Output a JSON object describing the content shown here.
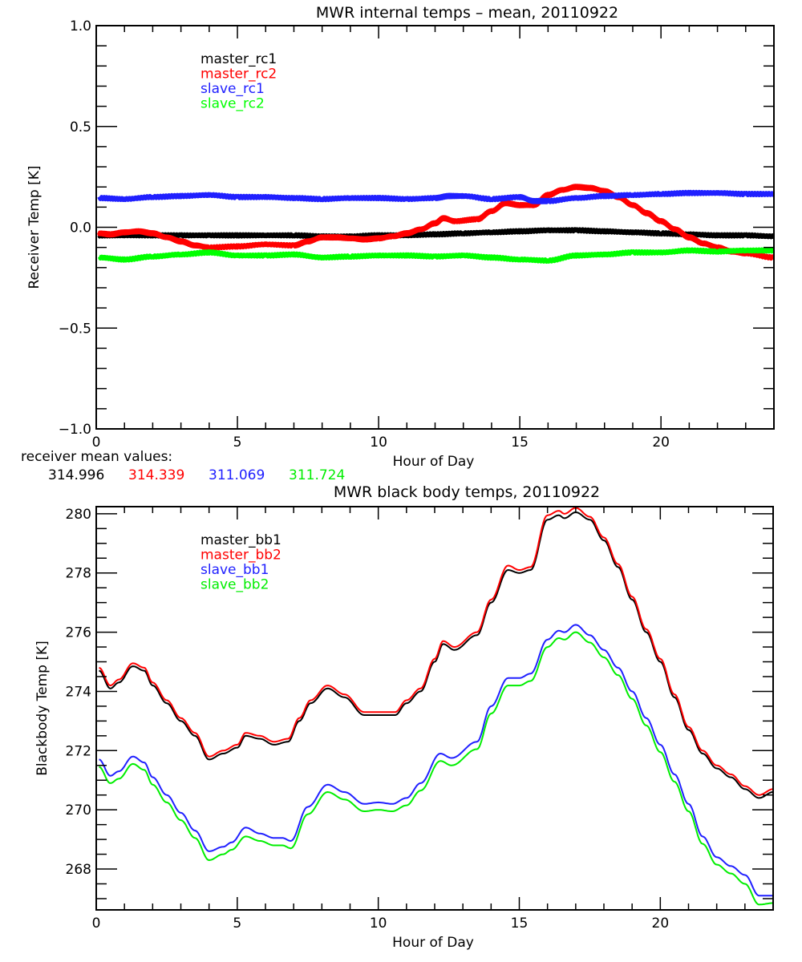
{
  "chart_data": [
    {
      "type": "line",
      "title": "MWR internal temps – mean, 20110922",
      "xlabel": "Hour of Day",
      "ylabel": "Receiver Temp [K]",
      "xlim": [
        0,
        24
      ],
      "ylim": [
        -1.0,
        1.0
      ],
      "xticks": [
        "0",
        "5",
        "10",
        "15",
        "20"
      ],
      "xtick_values": [
        0,
        5,
        10,
        15,
        20
      ],
      "yticks": [
        "-1.0",
        "-0.5",
        "0.0",
        "0.5",
        "1.0"
      ],
      "ytick_values": [
        -1.0,
        -0.5,
        0.0,
        0.5,
        1.0
      ],
      "grid": false,
      "legend_position": "top-left",
      "series": [
        {
          "name": "master_rc1",
          "color": "#000000",
          "x": [
            0.1,
            1,
            2,
            3,
            4,
            5,
            6,
            7,
            8,
            9,
            10,
            11,
            12,
            13,
            14,
            15,
            16,
            17,
            18,
            19,
            20,
            21,
            22,
            23,
            24
          ],
          "y": [
            -0.04,
            -0.04,
            -0.04,
            -0.04,
            -0.04,
            -0.04,
            -0.04,
            -0.04,
            -0.045,
            -0.045,
            -0.04,
            -0.04,
            -0.035,
            -0.03,
            -0.025,
            -0.02,
            -0.015,
            -0.015,
            -0.02,
            -0.025,
            -0.03,
            -0.035,
            -0.04,
            -0.04,
            -0.045
          ]
        },
        {
          "name": "master_rc2",
          "color": "#ff0000",
          "x": [
            0.1,
            0.5,
            1,
            1.5,
            2,
            2.5,
            3,
            3.5,
            4,
            5,
            6,
            7,
            7.5,
            8,
            8.5,
            9,
            9.5,
            10,
            10.5,
            11,
            11.5,
            12,
            12.3,
            12.7,
            13.5,
            14,
            14.5,
            15,
            15.5,
            16,
            16.5,
            17,
            17.5,
            18,
            18.5,
            19,
            19.5,
            20,
            20.5,
            21,
            21.5,
            22,
            22.5,
            23,
            24
          ],
          "y": [
            -0.03,
            -0.035,
            -0.025,
            -0.02,
            -0.03,
            -0.05,
            -0.07,
            -0.09,
            -0.1,
            -0.095,
            -0.085,
            -0.09,
            -0.07,
            -0.05,
            -0.05,
            -0.055,
            -0.06,
            -0.055,
            -0.045,
            -0.03,
            -0.01,
            0.02,
            0.045,
            0.03,
            0.04,
            0.08,
            0.12,
            0.11,
            0.11,
            0.16,
            0.185,
            0.2,
            0.195,
            0.18,
            0.15,
            0.11,
            0.07,
            0.03,
            -0.01,
            -0.05,
            -0.08,
            -0.1,
            -0.12,
            -0.13,
            -0.15
          ]
        },
        {
          "name": "slave_rc1",
          "color": "#2020ff",
          "x": [
            0.1,
            1,
            2,
            3,
            4,
            5,
            6,
            7,
            8,
            9,
            10,
            11,
            12,
            12.5,
            13,
            14,
            15,
            15.5,
            16,
            17,
            18,
            19,
            20,
            21,
            22,
            23,
            24
          ],
          "y": [
            0.145,
            0.14,
            0.15,
            0.155,
            0.16,
            0.15,
            0.15,
            0.145,
            0.14,
            0.145,
            0.145,
            0.14,
            0.145,
            0.155,
            0.155,
            0.14,
            0.15,
            0.13,
            0.13,
            0.145,
            0.155,
            0.16,
            0.165,
            0.17,
            0.17,
            0.165,
            0.165
          ]
        },
        {
          "name": "slave_rc2",
          "color": "#00ff00",
          "x": [
            0.1,
            1,
            2,
            3,
            4,
            5,
            6,
            7,
            8,
            9,
            10,
            11,
            12,
            13,
            14,
            15,
            16,
            17,
            18,
            19,
            20,
            21,
            22,
            23,
            24
          ],
          "y": [
            -0.15,
            -0.16,
            -0.145,
            -0.135,
            -0.125,
            -0.14,
            -0.14,
            -0.135,
            -0.15,
            -0.145,
            -0.14,
            -0.14,
            -0.145,
            -0.14,
            -0.15,
            -0.16,
            -0.165,
            -0.14,
            -0.135,
            -0.125,
            -0.125,
            -0.115,
            -0.12,
            -0.115,
            -0.115
          ]
        }
      ]
    },
    {
      "type": "line",
      "title": "MWR black body temps, 20110922",
      "xlabel": "Hour of Day",
      "ylabel": "Blackbody Temp [K]",
      "xlim": [
        0,
        24
      ],
      "ylim": [
        266.62,
        280.24
      ],
      "xticks": [
        "0",
        "5",
        "10",
        "15",
        "20"
      ],
      "xtick_values": [
        0,
        5,
        10,
        15,
        20
      ],
      "yticks": [
        "268",
        "270",
        "272",
        "274",
        "276",
        "278",
        "280"
      ],
      "ytick_values": [
        268,
        270,
        272,
        274,
        276,
        278,
        280
      ],
      "grid": false,
      "legend_position": "top-left",
      "series": [
        {
          "name": "master_bb1",
          "color": "#000000",
          "x": [
            0.1,
            0.5,
            0.8,
            1.3,
            1.7,
            2,
            2.5,
            3,
            3.5,
            4,
            4.5,
            5,
            5.3,
            5.8,
            6.3,
            6.8,
            7.2,
            7.6,
            8.2,
            8.8,
            9.5,
            10,
            10.6,
            11,
            11.5,
            12,
            12.3,
            12.7,
            13.5,
            14,
            14.6,
            15,
            15.4,
            16,
            16.4,
            16.6,
            17,
            17.5,
            18,
            18.5,
            19,
            19.5,
            20,
            20.5,
            21,
            21.5,
            22,
            22.5,
            23,
            23.5,
            24
          ],
          "y": [
            274.7,
            274.1,
            274.3,
            274.85,
            274.7,
            274.2,
            273.6,
            273.0,
            272.5,
            271.7,
            271.9,
            272.1,
            272.5,
            272.4,
            272.2,
            272.3,
            273.0,
            273.6,
            274.1,
            273.8,
            273.2,
            273.2,
            273.2,
            273.6,
            274.0,
            275.0,
            275.6,
            275.4,
            275.9,
            277.0,
            278.1,
            278.0,
            278.1,
            279.8,
            279.95,
            279.85,
            280.05,
            279.8,
            279.1,
            278.2,
            277.1,
            276.0,
            275.0,
            273.8,
            272.7,
            271.9,
            271.4,
            271.1,
            270.7,
            270.4,
            270.6
          ]
        },
        {
          "name": "master_bb2",
          "color": "#ff0000",
          "x": [
            0.1,
            0.5,
            0.8,
            1.3,
            1.7,
            2,
            2.5,
            3,
            3.5,
            4,
            4.5,
            5,
            5.3,
            5.8,
            6.3,
            6.8,
            7.2,
            7.6,
            8.2,
            8.8,
            9.5,
            10,
            10.6,
            11,
            11.5,
            12,
            12.3,
            12.7,
            13.5,
            14,
            14.6,
            15,
            15.4,
            16,
            16.4,
            16.6,
            17,
            17.5,
            18,
            18.5,
            19,
            19.5,
            20,
            20.5,
            21,
            21.5,
            22,
            22.5,
            23,
            23.5,
            24
          ],
          "y": [
            274.8,
            274.2,
            274.4,
            274.95,
            274.8,
            274.3,
            273.7,
            273.1,
            272.6,
            271.8,
            272.0,
            272.2,
            272.6,
            272.5,
            272.3,
            272.4,
            273.1,
            273.7,
            274.2,
            273.9,
            273.3,
            273.3,
            273.3,
            273.7,
            274.1,
            275.1,
            275.7,
            275.5,
            276.0,
            277.1,
            278.25,
            278.1,
            278.2,
            279.95,
            280.1,
            280.0,
            280.2,
            279.9,
            279.2,
            278.3,
            277.2,
            276.1,
            275.1,
            273.9,
            272.8,
            272.0,
            271.5,
            271.2,
            270.8,
            270.5,
            270.7
          ]
        },
        {
          "name": "slave_bb1",
          "color": "#2020ff",
          "x": [
            0.1,
            0.5,
            0.8,
            1.3,
            1.7,
            2,
            2.5,
            3,
            3.5,
            4,
            4.5,
            4.8,
            5.3,
            5.8,
            6.3,
            6.6,
            6.9,
            7.5,
            8.2,
            8.8,
            9.5,
            10,
            10.5,
            11,
            11.5,
            12.2,
            12.6,
            13.5,
            14,
            14.6,
            15,
            15.4,
            16,
            16.4,
            16.6,
            17,
            17.5,
            18,
            18.5,
            19,
            19.5,
            20,
            20.5,
            21,
            21.5,
            22,
            22.5,
            23,
            23.5,
            24
          ],
          "y": [
            271.7,
            271.15,
            271.3,
            271.8,
            271.6,
            271.1,
            270.5,
            269.9,
            269.3,
            268.6,
            268.75,
            268.9,
            269.4,
            269.2,
            269.05,
            269.05,
            268.95,
            270.1,
            270.85,
            270.6,
            270.2,
            270.25,
            270.2,
            270.4,
            270.9,
            271.9,
            271.75,
            272.3,
            273.5,
            274.45,
            274.45,
            274.6,
            275.75,
            276.05,
            276.0,
            276.25,
            275.9,
            275.4,
            274.8,
            274.0,
            273.1,
            272.2,
            271.2,
            270.2,
            269.1,
            268.4,
            268.1,
            267.8,
            267.1,
            267.1
          ]
        },
        {
          "name": "slave_bb2",
          "color": "#00ee00",
          "x": [
            0.1,
            0.5,
            0.8,
            1.3,
            1.7,
            2,
            2.5,
            3,
            3.5,
            4,
            4.5,
            4.8,
            5.3,
            5.8,
            6.3,
            6.6,
            6.9,
            7.5,
            8.2,
            8.8,
            9.5,
            10,
            10.5,
            11,
            11.5,
            12.2,
            12.6,
            13.5,
            14,
            14.6,
            15,
            15.4,
            16,
            16.4,
            16.6,
            17,
            17.5,
            18,
            18.5,
            19,
            19.5,
            20,
            20.5,
            21,
            21.5,
            22,
            22.5,
            23,
            23.5,
            24
          ],
          "y": [
            271.45,
            270.9,
            271.05,
            271.55,
            271.35,
            270.85,
            270.25,
            269.65,
            269.05,
            268.3,
            268.5,
            268.65,
            269.1,
            268.95,
            268.8,
            268.8,
            268.7,
            269.85,
            270.6,
            270.35,
            269.95,
            270.0,
            269.95,
            270.15,
            270.65,
            271.65,
            271.5,
            272.05,
            273.25,
            274.2,
            274.2,
            274.35,
            275.5,
            275.8,
            275.75,
            276.0,
            275.65,
            275.15,
            274.55,
            273.75,
            272.85,
            271.95,
            270.95,
            269.95,
            268.85,
            268.15,
            267.85,
            267.5,
            266.8,
            266.85
          ]
        }
      ]
    }
  ],
  "receiver_mean": {
    "label": "receiver mean values:",
    "values": [
      {
        "text": "314.996",
        "color": "#000000"
      },
      {
        "text": "314.339",
        "color": "#ff0000"
      },
      {
        "text": "311.069",
        "color": "#2020ff"
      },
      {
        "text": "311.724",
        "color": "#00ee00"
      }
    ]
  }
}
